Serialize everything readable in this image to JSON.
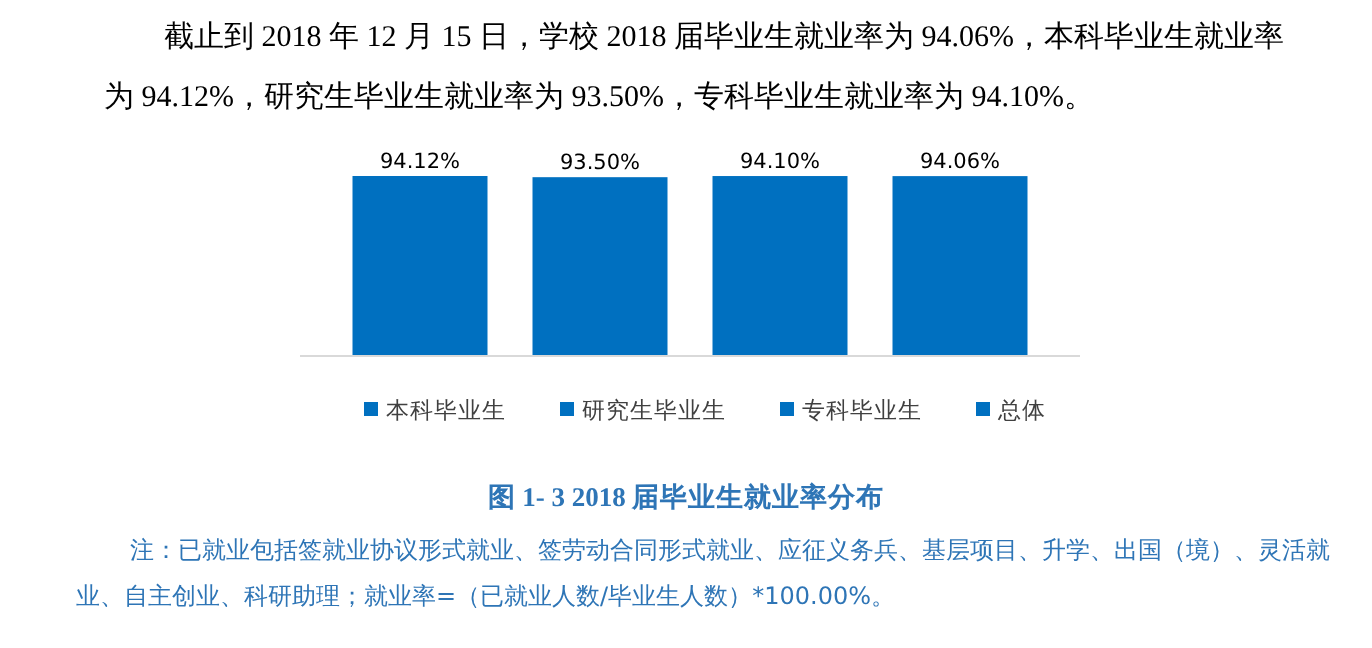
{
  "chart_data": {
    "type": "bar",
    "title": "图 1- 3   2018 届毕业生就业率分布",
    "categories": [
      null
    ],
    "series": [
      {
        "name": "本科毕业生",
        "color": "#0070c0",
        "values": [
          94.12
        ],
        "value_labels": [
          "94.12%"
        ]
      },
      {
        "name": "研究生毕业生",
        "color": "#0070c0",
        "values": [
          93.5
        ],
        "value_labels": [
          "93.50%"
        ]
      },
      {
        "name": "专科毕业生",
        "color": "#0070c0",
        "values": [
          94.1
        ],
        "value_labels": [
          "94.10%"
        ]
      },
      {
        "name": "总体",
        "color": "#0070c0",
        "values": [
          94.06
        ],
        "value_labels": [
          "94.06%"
        ]
      }
    ],
    "legend": "bottom",
    "annotations": [
      "截止到 2018 年 12 月 15 日，学校 2018 届毕业生就业率为 94.06%，本科毕业生就业率为 94.12%，研究生毕业生就业率为 93.50%，专科毕业生就业率为 94.10%。",
      "注：已就业包括签就业协议形式就业、签劳动合同形式就业、应征义务兵、基层项目、升学、出国（境）、灵活就业、自主创业、科研助理；就业率=（已就业人数/毕业生人数）*100.00%。"
    ]
  }
}
